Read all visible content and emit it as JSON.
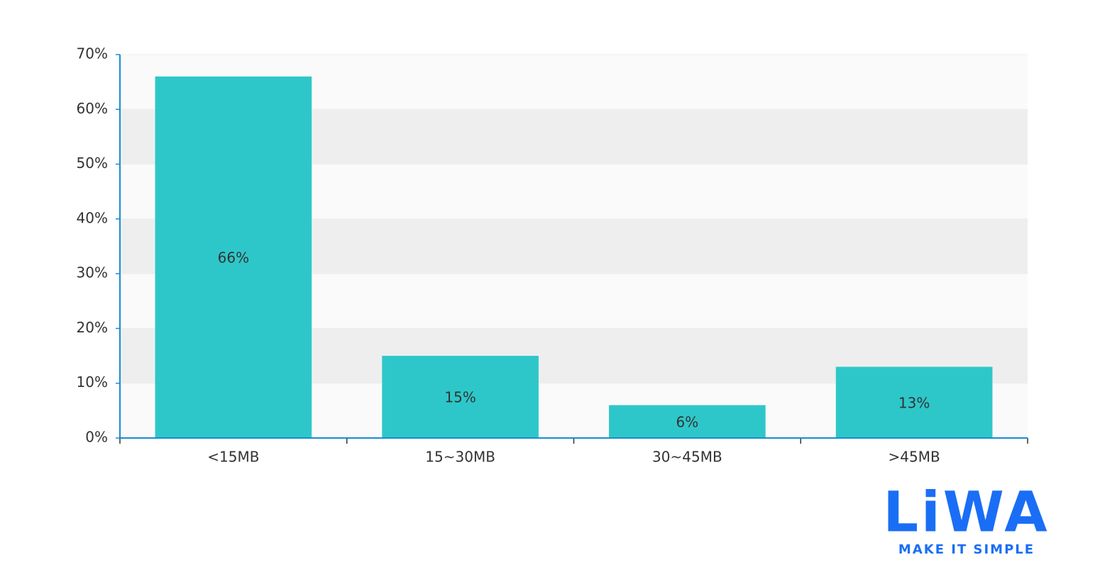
{
  "chart_data": {
    "type": "bar",
    "categories": [
      "<15MB",
      "15~30MB",
      "30~45MB",
      ">45MB"
    ],
    "values": [
      66,
      15,
      6,
      13
    ],
    "value_labels": [
      "66%",
      "15%",
      "6%",
      "13%"
    ],
    "color": "#2ec7c9",
    "ylim": [
      0,
      70
    ],
    "yticks": [
      {
        "value": 0,
        "label": "0%"
      },
      {
        "value": 10,
        "label": "10%"
      },
      {
        "value": 20,
        "label": "20%"
      },
      {
        "value": 30,
        "label": "30%"
      },
      {
        "value": 40,
        "label": "40%"
      },
      {
        "value": 50,
        "label": "50%"
      },
      {
        "value": 60,
        "label": "60%"
      },
      {
        "value": 70,
        "label": "70%"
      }
    ],
    "grid": true
  },
  "logo": {
    "name": "LiWA",
    "tagline": "MAKE IT SIMPLE"
  }
}
